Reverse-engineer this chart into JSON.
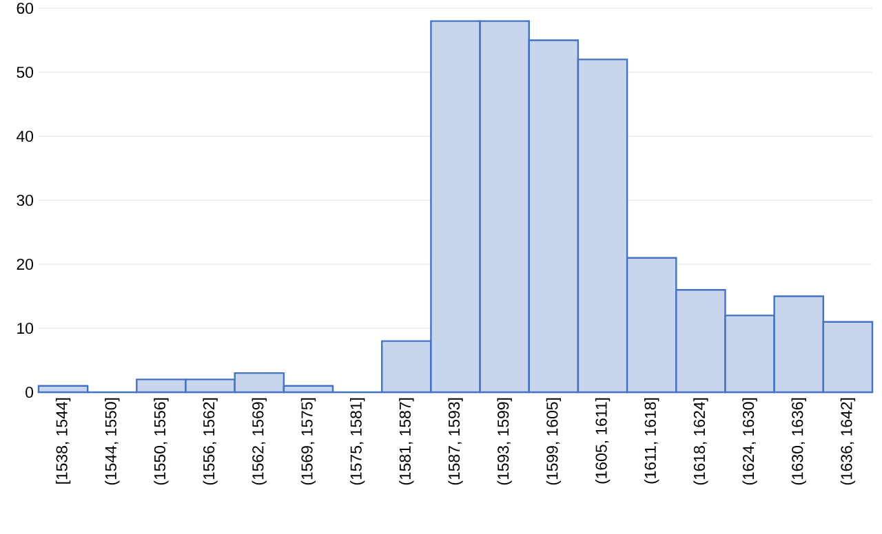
{
  "chart_data": {
    "type": "bar",
    "categories": [
      "[1538, 1544]",
      "(1544, 1550]",
      "(1550, 1556]",
      "(1556, 1562]",
      "(1562, 1569]",
      "(1569, 1575]",
      "(1575, 1581]",
      "(1581, 1587]",
      "(1587, 1593]",
      "(1593, 1599]",
      "(1599, 1605]",
      "(1605, 1611]",
      "(1611, 1618]",
      "(1618, 1624]",
      "(1624, 1630]",
      "(1630, 1636]",
      "(1636, 1642]"
    ],
    "values": [
      1,
      0,
      2,
      2,
      3,
      1,
      0,
      8,
      58,
      58,
      55,
      52,
      21,
      16,
      12,
      15,
      11
    ],
    "color": "#4472c4",
    "ylim": [
      0,
      60
    ],
    "yticks": [
      0,
      10,
      20,
      30,
      40,
      50,
      60
    ],
    "grid": "y"
  }
}
